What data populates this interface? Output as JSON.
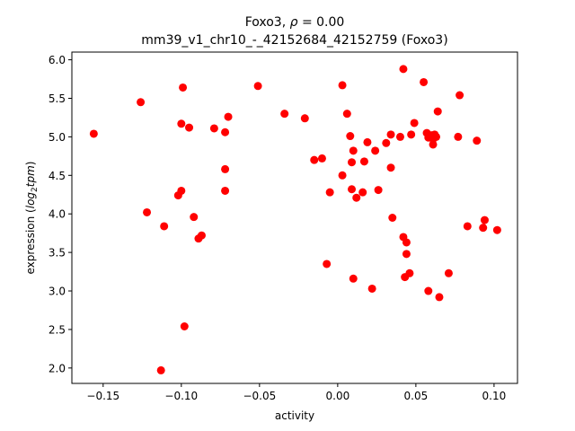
{
  "chart_data": {
    "type": "scatter",
    "title_line1_prefix": "Foxo3, ",
    "title_line1_rho": "ρ",
    "title_line1_suffix": " = 0.00",
    "title_line2": "mm39_v1_chr10_-_42152684_42152759 (Foxo3)",
    "xlabel": "activity",
    "ylabel_prefix": "expression (",
    "ylabel_base": "log",
    "ylabel_sub": "2",
    "ylabel_arg": "tpm",
    "ylabel_suffix": ")",
    "xlim": [
      -0.17,
      0.115
    ],
    "ylim": [
      1.8,
      6.1
    ],
    "xticks": [
      -0.15,
      -0.1,
      -0.05,
      0.0,
      0.05,
      0.1
    ],
    "xtick_labels": [
      "−0.15",
      "−0.10",
      "−0.05",
      "0.00",
      "0.05",
      "0.10"
    ],
    "yticks": [
      2.0,
      2.5,
      3.0,
      3.5,
      4.0,
      4.5,
      5.0,
      5.5,
      6.0
    ],
    "ytick_labels": [
      "2.0",
      "2.5",
      "3.0",
      "3.5",
      "4.0",
      "4.5",
      "5.0",
      "5.5",
      "6.0"
    ],
    "grid": false,
    "marker_color": "#ff0000",
    "points": [
      {
        "x": -0.156,
        "y": 5.04
      },
      {
        "x": -0.126,
        "y": 5.45
      },
      {
        "x": -0.122,
        "y": 4.02
      },
      {
        "x": -0.113,
        "y": 1.97
      },
      {
        "x": -0.111,
        "y": 3.84
      },
      {
        "x": -0.102,
        "y": 4.24
      },
      {
        "x": -0.1,
        "y": 5.17
      },
      {
        "x": -0.1,
        "y": 4.3
      },
      {
        "x": -0.099,
        "y": 5.64
      },
      {
        "x": -0.098,
        "y": 2.54
      },
      {
        "x": -0.095,
        "y": 5.12
      },
      {
        "x": -0.092,
        "y": 3.96
      },
      {
        "x": -0.089,
        "y": 3.68
      },
      {
        "x": -0.087,
        "y": 3.72
      },
      {
        "x": -0.079,
        "y": 5.11
      },
      {
        "x": -0.072,
        "y": 5.06
      },
      {
        "x": -0.072,
        "y": 4.58
      },
      {
        "x": -0.072,
        "y": 4.3
      },
      {
        "x": -0.07,
        "y": 5.26
      },
      {
        "x": -0.051,
        "y": 5.66
      },
      {
        "x": -0.034,
        "y": 5.3
      },
      {
        "x": -0.021,
        "y": 5.24
      },
      {
        "x": -0.015,
        "y": 4.7
      },
      {
        "x": -0.01,
        "y": 4.72
      },
      {
        "x": -0.007,
        "y": 3.35
      },
      {
        "x": -0.005,
        "y": 4.28
      },
      {
        "x": 0.003,
        "y": 5.67
      },
      {
        "x": 0.003,
        "y": 4.5
      },
      {
        "x": 0.006,
        "y": 5.3
      },
      {
        "x": 0.008,
        "y": 5.01
      },
      {
        "x": 0.009,
        "y": 4.67
      },
      {
        "x": 0.009,
        "y": 4.32
      },
      {
        "x": 0.01,
        "y": 4.82
      },
      {
        "x": 0.01,
        "y": 3.16
      },
      {
        "x": 0.012,
        "y": 4.21
      },
      {
        "x": 0.016,
        "y": 4.28
      },
      {
        "x": 0.017,
        "y": 4.68
      },
      {
        "x": 0.019,
        "y": 4.93
      },
      {
        "x": 0.022,
        "y": 3.03
      },
      {
        "x": 0.024,
        "y": 4.82
      },
      {
        "x": 0.026,
        "y": 4.31
      },
      {
        "x": 0.031,
        "y": 4.92
      },
      {
        "x": 0.034,
        "y": 5.03
      },
      {
        "x": 0.034,
        "y": 4.6
      },
      {
        "x": 0.035,
        "y": 3.95
      },
      {
        "x": 0.04,
        "y": 5.0
      },
      {
        "x": 0.042,
        "y": 5.88
      },
      {
        "x": 0.042,
        "y": 3.7
      },
      {
        "x": 0.043,
        "y": 3.18
      },
      {
        "x": 0.044,
        "y": 3.63
      },
      {
        "x": 0.044,
        "y": 3.48
      },
      {
        "x": 0.046,
        "y": 3.23
      },
      {
        "x": 0.047,
        "y": 5.03
      },
      {
        "x": 0.049,
        "y": 5.18
      },
      {
        "x": 0.055,
        "y": 5.71
      },
      {
        "x": 0.057,
        "y": 5.05
      },
      {
        "x": 0.058,
        "y": 4.99
      },
      {
        "x": 0.058,
        "y": 3.0
      },
      {
        "x": 0.06,
        "y": 5.02
      },
      {
        "x": 0.061,
        "y": 4.97
      },
      {
        "x": 0.061,
        "y": 4.9
      },
      {
        "x": 0.062,
        "y": 5.03
      },
      {
        "x": 0.063,
        "y": 5.0
      },
      {
        "x": 0.064,
        "y": 5.33
      },
      {
        "x": 0.065,
        "y": 2.92
      },
      {
        "x": 0.071,
        "y": 3.23
      },
      {
        "x": 0.077,
        "y": 5.0
      },
      {
        "x": 0.078,
        "y": 5.54
      },
      {
        "x": 0.083,
        "y": 3.84
      },
      {
        "x": 0.089,
        "y": 4.95
      },
      {
        "x": 0.093,
        "y": 3.82
      },
      {
        "x": 0.094,
        "y": 3.92
      },
      {
        "x": 0.102,
        "y": 3.79
      }
    ]
  }
}
